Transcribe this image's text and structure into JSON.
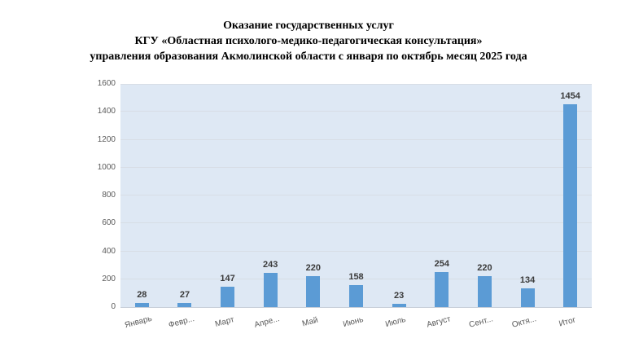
{
  "title": {
    "lines": [
      "Оказание государственных услуг",
      "КГУ «Областная психолого-медико-педагогическая консультация»",
      "управления образования Акмолинской области с января по октябрь месяц 2025 года"
    ]
  },
  "chart_data": {
    "type": "bar",
    "categories": [
      "Январь",
      "Февр...",
      "Март",
      "Апре...",
      "Май",
      "Июнь",
      "Июль",
      "Август",
      "Сент...",
      "Октя...",
      "Итог"
    ],
    "values": [
      28,
      27,
      147,
      243,
      220,
      158,
      23,
      254,
      220,
      134,
      1454
    ],
    "title": "Оказание государственных услуг КГУ «Областная психолого-медико-педагогическая консультация» управления образования Акмолинской области с января по октябрь месяц 2025 года",
    "xlabel": "",
    "ylabel": "",
    "ylim": [
      0,
      1600
    ],
    "ytick_step": 200,
    "grid": true,
    "legend_position": "none",
    "data_labels_shown": true,
    "colors": {
      "bar": "#5B9BD5",
      "plot_background": "#dee8f4",
      "gridline": "#d7dde5",
      "axis_line": "#c9d0da",
      "tick_label": "#595959",
      "data_label": "#3b3b3b",
      "title_text": "#000000",
      "page_background": "#ffffff"
    }
  }
}
